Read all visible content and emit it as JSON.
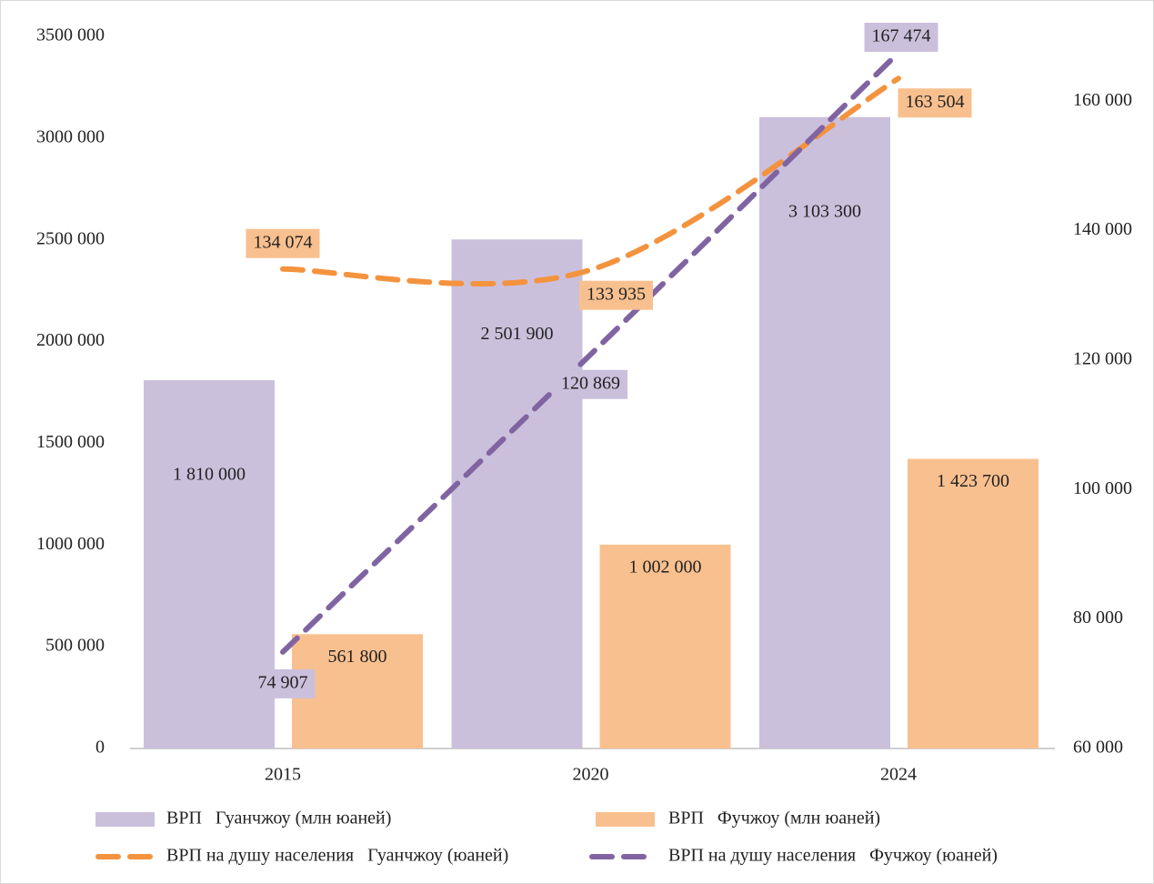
{
  "chart_data": {
    "type": "bar",
    "categories": [
      "2015",
      "2020",
      "2024"
    ],
    "series": [
      {
        "name": "ВРП   Гуанчжоу (млн юаней)",
        "type": "bar",
        "color": "#cbc0dc",
        "values": [
          1810000,
          2501900,
          3103300
        ],
        "value_labels": [
          "1 810 000",
          "2 501 900",
          "3 103 300"
        ]
      },
      {
        "name": "ВРП   Фучжоу (млн юаней)",
        "type": "bar",
        "color": "#f9c08f",
        "values": [
          561800,
          1002000,
          1423700
        ],
        "value_labels": [
          "561 800",
          "1 002 000",
          "1 423 700"
        ]
      },
      {
        "name": "ВРП на душу населения   Гуанчжоу (юаней)",
        "type": "line",
        "axis": "y2",
        "color": "#f4933e",
        "values": [
          134074,
          133935,
          163504
        ],
        "value_labels": [
          "134 074",
          "133 935",
          "163 504"
        ]
      },
      {
        "name": "ВРП на душу населения   Фучжоу (юаней)",
        "type": "line",
        "axis": "y2",
        "color": "#8064a2",
        "values": [
          74907,
          120869,
          167474
        ],
        "value_labels": [
          "74 907",
          "120 869",
          "167 474"
        ]
      }
    ],
    "ylim": [
      0,
      3500000
    ],
    "yticks": [
      0,
      {
        "value": 500000,
        "label": "500 000"
      },
      {
        "value": 1000000,
        "label": "1000 000"
      },
      {
        "value": 1500000,
        "label": "1500 000"
      },
      {
        "value": 2000000,
        "label": "2000 000"
      },
      {
        "value": 2500000,
        "label": "2500 000"
      },
      {
        "value": 3000000,
        "label": "3000 000"
      },
      {
        "value": 3500000,
        "label": "3500 000"
      }
    ],
    "y2lim": [
      60000,
      170000
    ],
    "y2ticks": [
      {
        "value": 60000,
        "label": "60 000"
      },
      {
        "value": 80000,
        "label": "80 000"
      },
      {
        "value": 100000,
        "label": "100 000"
      },
      {
        "value": 120000,
        "label": "120 000"
      },
      {
        "value": 140000,
        "label": "140 000"
      },
      {
        "value": 160000,
        "label": "160 000"
      }
    ],
    "grid": false,
    "legend": "bottom"
  }
}
